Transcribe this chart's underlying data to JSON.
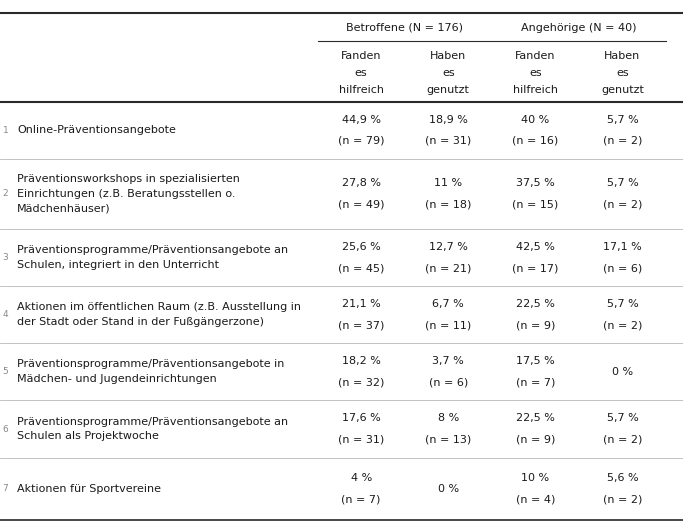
{
  "title_row": [
    "Betroffene (N = 176)",
    "Angehörige (N = 40)"
  ],
  "header_row_line1": [
    "Fanden",
    "Haben",
    "Fanden",
    "Haben"
  ],
  "header_row_line2": [
    "es",
    "es",
    "es",
    "es"
  ],
  "header_row_line3": [
    "hilfreich",
    "genutzt",
    "hilfreich",
    "genutzt"
  ],
  "rows": [
    {
      "label_lines": [
        "Online-Präventionsangebote"
      ],
      "val1": "44,9 %",
      "n1": "(n = 79)",
      "val2": "18,9 %",
      "n2": "(n = 31)",
      "val3": "40 %",
      "n3": "(n = 16)",
      "val4": "5,7 %",
      "n4": "(n = 2)",
      "label_valign": "center"
    },
    {
      "label_lines": [
        "Präventionsworkshops in spezialisierten",
        "Einrichtungen (z.B. Beratungsstellen o.",
        "Mädchenhäuser)"
      ],
      "val1": "27,8 %",
      "n1": "(n = 49)",
      "val2": "11 %",
      "n2": "(n = 18)",
      "val3": "37,5 %",
      "n3": "(n = 15)",
      "val4": "5,7 %",
      "n4": "(n = 2)",
      "label_valign": "center"
    },
    {
      "label_lines": [
        "Präventionsprogramme/Präventionsangebote an",
        "Schulen, integriert in den Unterricht"
      ],
      "val1": "25,6 %",
      "n1": "(n = 45)",
      "val2": "12,7 %",
      "n2": "(n = 21)",
      "val3": "42,5 %",
      "n3": "(n = 17)",
      "val4": "17,1 %",
      "n4": "(n = 6)",
      "label_valign": "center"
    },
    {
      "label_lines": [
        "Aktionen im öffentlichen Raum (z.B. Ausstellung in",
        "der Stadt oder Stand in der Fußgängerzone)"
      ],
      "val1": "21,1 %",
      "n1": "(n = 37)",
      "val2": "6,7 %",
      "n2": "(n = 11)",
      "val3": "22,5 %",
      "n3": "(n = 9)",
      "val4": "5,7 %",
      "n4": "(n = 2)",
      "label_valign": "center"
    },
    {
      "label_lines": [
        "Präventionsprogramme/Präventionsangebote in",
        "Mädchen- und Jugendeinrichtungen"
      ],
      "val1": "18,2 %",
      "n1": "(n = 32)",
      "val2": "3,7 %",
      "n2": "(n = 6)",
      "val3": "17,5 %",
      "n3": "(n = 7)",
      "val4": "0 %",
      "n4": "",
      "label_valign": "center"
    },
    {
      "label_lines": [
        "Präventionsprogramme/Präventionsangebote an",
        "Schulen als Projektwoche"
      ],
      "val1": "17,6 %",
      "n1": "(n = 31)",
      "val2": "8 %",
      "n2": "(n = 13)",
      "val3": "22,5 %",
      "n3": "(n = 9)",
      "val4": "5,7 %",
      "n4": "(n = 2)",
      "label_valign": "center"
    },
    {
      "label_lines": [
        "Aktionen für Sportvereine"
      ],
      "val1": "4 %",
      "n1": "(n = 7)",
      "val2": "0 %",
      "n2": "",
      "val3": "10 %",
      "n3": "(n = 4)",
      "val4": "5,6 %",
      "n4": "(n = 2)",
      "label_valign": "bottom"
    }
  ],
  "bg_color": "#ffffff",
  "text_color": "#1a1a1a",
  "line_color": "#2a2a2a",
  "thin_line_color": "#aaaaaa",
  "font_size": 8.0,
  "font_family": "DejaVu Sans"
}
